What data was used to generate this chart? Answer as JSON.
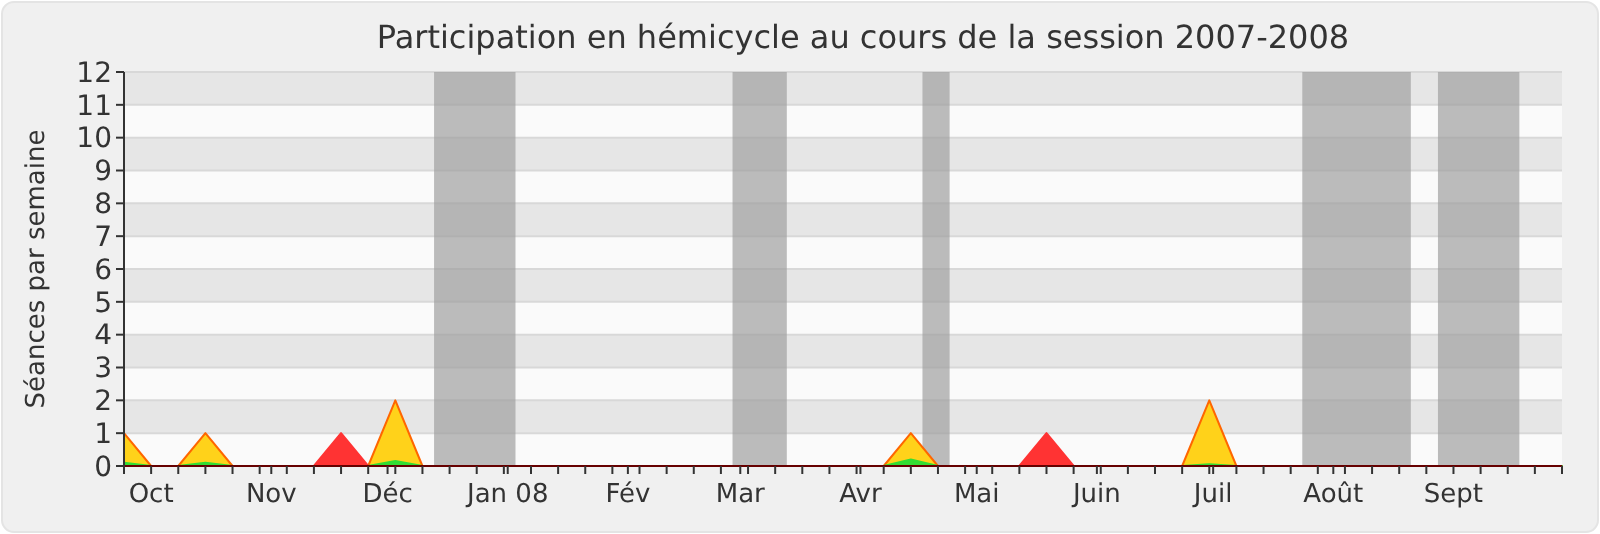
{
  "chart_data": {
    "type": "area",
    "title": "Participation en hémicycle au cours de la session 2007-2008",
    "ylabel": "Séances par semaine",
    "x": [
      "2007-09-24",
      "2007-10-01",
      "2007-10-08",
      "2007-10-15",
      "2007-10-22",
      "2007-10-29",
      "2007-11-05",
      "2007-11-12",
      "2007-11-19",
      "2007-11-26",
      "2007-12-03",
      "2007-12-10",
      "2007-12-17",
      "2007-12-24",
      "2007-12-31",
      "2008-01-07",
      "2008-01-14",
      "2008-01-21",
      "2008-01-28",
      "2008-02-04",
      "2008-02-11",
      "2008-02-18",
      "2008-02-25",
      "2008-03-03",
      "2008-03-10",
      "2008-03-17",
      "2008-03-24",
      "2008-03-31",
      "2008-04-07",
      "2008-04-14",
      "2008-04-21",
      "2008-04-28",
      "2008-05-05",
      "2008-05-12",
      "2008-05-19",
      "2008-05-26",
      "2008-06-02",
      "2008-06-09",
      "2008-06-16",
      "2008-06-23",
      "2008-06-30",
      "2008-07-07",
      "2008-07-14",
      "2008-07-21",
      "2008-07-28",
      "2008-08-04",
      "2008-08-11",
      "2008-08-18",
      "2008-08-25",
      "2008-09-01",
      "2008-09-08",
      "2008-09-15",
      "2008-09-22",
      "2008-09-29"
    ],
    "series": [
      {
        "color": "#ffd21a",
        "values": [
          1,
          0,
          0,
          1,
          0,
          0,
          0,
          0,
          0,
          0,
          2,
          0,
          0,
          0,
          0,
          0,
          0,
          0,
          0,
          0,
          0,
          0,
          0,
          0,
          0,
          0,
          0,
          0,
          0,
          1,
          0,
          0,
          0,
          0,
          0,
          0,
          0,
          0,
          0,
          0,
          2,
          0,
          0,
          0,
          0,
          0,
          0,
          0,
          0,
          0,
          0,
          0,
          0,
          0
        ]
      },
      {
        "color": "#ff3333",
        "values": [
          0,
          0,
          0,
          0,
          0,
          0,
          0,
          0,
          1,
          0,
          0,
          0,
          0,
          0,
          0,
          0,
          0,
          0,
          0,
          0,
          0,
          0,
          0,
          0,
          0,
          0,
          0,
          0,
          0,
          0,
          0,
          0,
          0,
          0,
          1,
          0,
          0,
          0,
          0,
          0,
          0,
          0,
          0,
          0,
          0,
          0,
          0,
          0,
          0,
          0,
          0,
          0,
          0,
          0
        ]
      },
      {
        "color": "#33dd33",
        "values": [
          0.1,
          0,
          0,
          0.1,
          0,
          0,
          0,
          0,
          0,
          0,
          0.15,
          0,
          0,
          0,
          0,
          0,
          0,
          0,
          0,
          0,
          0,
          0,
          0,
          0,
          0,
          0,
          0,
          0,
          0,
          0.2,
          0,
          0,
          0,
          0,
          0,
          0,
          0,
          0,
          0,
          0,
          0.05,
          0,
          0,
          0,
          0,
          0,
          0,
          0,
          0,
          0,
          0,
          0,
          0,
          0
        ]
      }
    ],
    "xlim": [
      "2007-09-24",
      "2008-09-29"
    ],
    "xticks": [
      {
        "value": "2007-10-01",
        "label": "Oct"
      },
      {
        "value": "2007-11-01",
        "label": "Nov"
      },
      {
        "value": "2007-12-01",
        "label": "Déc"
      },
      {
        "value": "2008-01-01",
        "label": "Jan 08"
      },
      {
        "value": "2008-02-01",
        "label": "Fév"
      },
      {
        "value": "2008-03-01",
        "label": "Mar"
      },
      {
        "value": "2008-04-01",
        "label": "Avr"
      },
      {
        "value": "2008-05-01",
        "label": "Mai"
      },
      {
        "value": "2008-06-01",
        "label": "Juin"
      },
      {
        "value": "2008-07-01",
        "label": "Juil"
      },
      {
        "value": "2008-08-01",
        "label": "Août"
      },
      {
        "value": "2008-09-01",
        "label": "Sept"
      },
      {
        "value": "2007-09-24",
        "label": null
      },
      {
        "value": "2007-10-08",
        "label": null
      },
      {
        "value": "2007-10-15",
        "label": null
      },
      {
        "value": "2007-10-22",
        "label": null
      },
      {
        "value": "2007-10-29",
        "label": null
      },
      {
        "value": "2007-11-05",
        "label": null
      },
      {
        "value": "2007-11-12",
        "label": null
      },
      {
        "value": "2007-11-19",
        "label": null
      },
      {
        "value": "2007-11-26",
        "label": null
      },
      {
        "value": "2007-12-03",
        "label": null
      },
      {
        "value": "2007-12-10",
        "label": null
      },
      {
        "value": "2007-12-17",
        "label": null
      },
      {
        "value": "2007-12-24",
        "label": null
      },
      {
        "value": "2007-12-31",
        "label": null
      },
      {
        "value": "2008-01-07",
        "label": null
      },
      {
        "value": "2008-01-14",
        "label": null
      },
      {
        "value": "2008-01-21",
        "label": null
      },
      {
        "value": "2008-01-28",
        "label": null
      },
      {
        "value": "2008-02-04",
        "label": null
      },
      {
        "value": "2008-02-11",
        "label": null
      },
      {
        "value": "2008-02-18",
        "label": null
      },
      {
        "value": "2008-02-25",
        "label": null
      },
      {
        "value": "2008-03-03",
        "label": null
      },
      {
        "value": "2008-03-10",
        "label": null
      },
      {
        "value": "2008-03-17",
        "label": null
      },
      {
        "value": "2008-03-24",
        "label": null
      },
      {
        "value": "2008-03-31",
        "label": null
      },
      {
        "value": "2008-04-07",
        "label": null
      },
      {
        "value": "2008-04-14",
        "label": null
      },
      {
        "value": "2008-04-21",
        "label": null
      },
      {
        "value": "2008-04-28",
        "label": null
      },
      {
        "value": "2008-05-05",
        "label": null
      },
      {
        "value": "2008-05-12",
        "label": null
      },
      {
        "value": "2008-05-19",
        "label": null
      },
      {
        "value": "2008-05-26",
        "label": null
      },
      {
        "value": "2008-06-02",
        "label": null
      },
      {
        "value": "2008-06-09",
        "label": null
      },
      {
        "value": "2008-06-16",
        "label": null
      },
      {
        "value": "2008-06-23",
        "label": null
      },
      {
        "value": "2008-06-30",
        "label": null
      },
      {
        "value": "2008-07-07",
        "label": null
      },
      {
        "value": "2008-07-14",
        "label": null
      },
      {
        "value": "2008-07-21",
        "label": null
      },
      {
        "value": "2008-07-28",
        "label": null
      },
      {
        "value": "2008-08-04",
        "label": null
      },
      {
        "value": "2008-08-11",
        "label": null
      },
      {
        "value": "2008-08-18",
        "label": null
      },
      {
        "value": "2008-08-25",
        "label": null
      },
      {
        "value": "2008-09-08",
        "label": null
      },
      {
        "value": "2008-09-15",
        "label": null
      },
      {
        "value": "2008-09-22",
        "label": null
      },
      {
        "value": "2008-09-29",
        "label": null
      }
    ],
    "ylim": [
      0,
      12
    ],
    "yticks": [
      0,
      1,
      2,
      3,
      4,
      5,
      6,
      7,
      8,
      9,
      10,
      11,
      12
    ],
    "grid": "y",
    "bands": [
      {
        "axis": "x",
        "from": "2007-12-13",
        "to": "2008-01-03",
        "color": "#a0a0a0"
      },
      {
        "axis": "x",
        "from": "2008-02-28",
        "to": "2008-03-13",
        "color": "#a0a0a0"
      },
      {
        "axis": "x",
        "from": "2008-04-17",
        "to": "2008-04-24",
        "color": "#a0a0a0"
      },
      {
        "axis": "x",
        "from": "2008-07-24",
        "to": "2008-08-21",
        "color": "#a0a0a0"
      },
      {
        "axis": "x",
        "from": "2008-08-28",
        "to": "2008-09-18",
        "color": "#a0a0a0"
      }
    ]
  }
}
